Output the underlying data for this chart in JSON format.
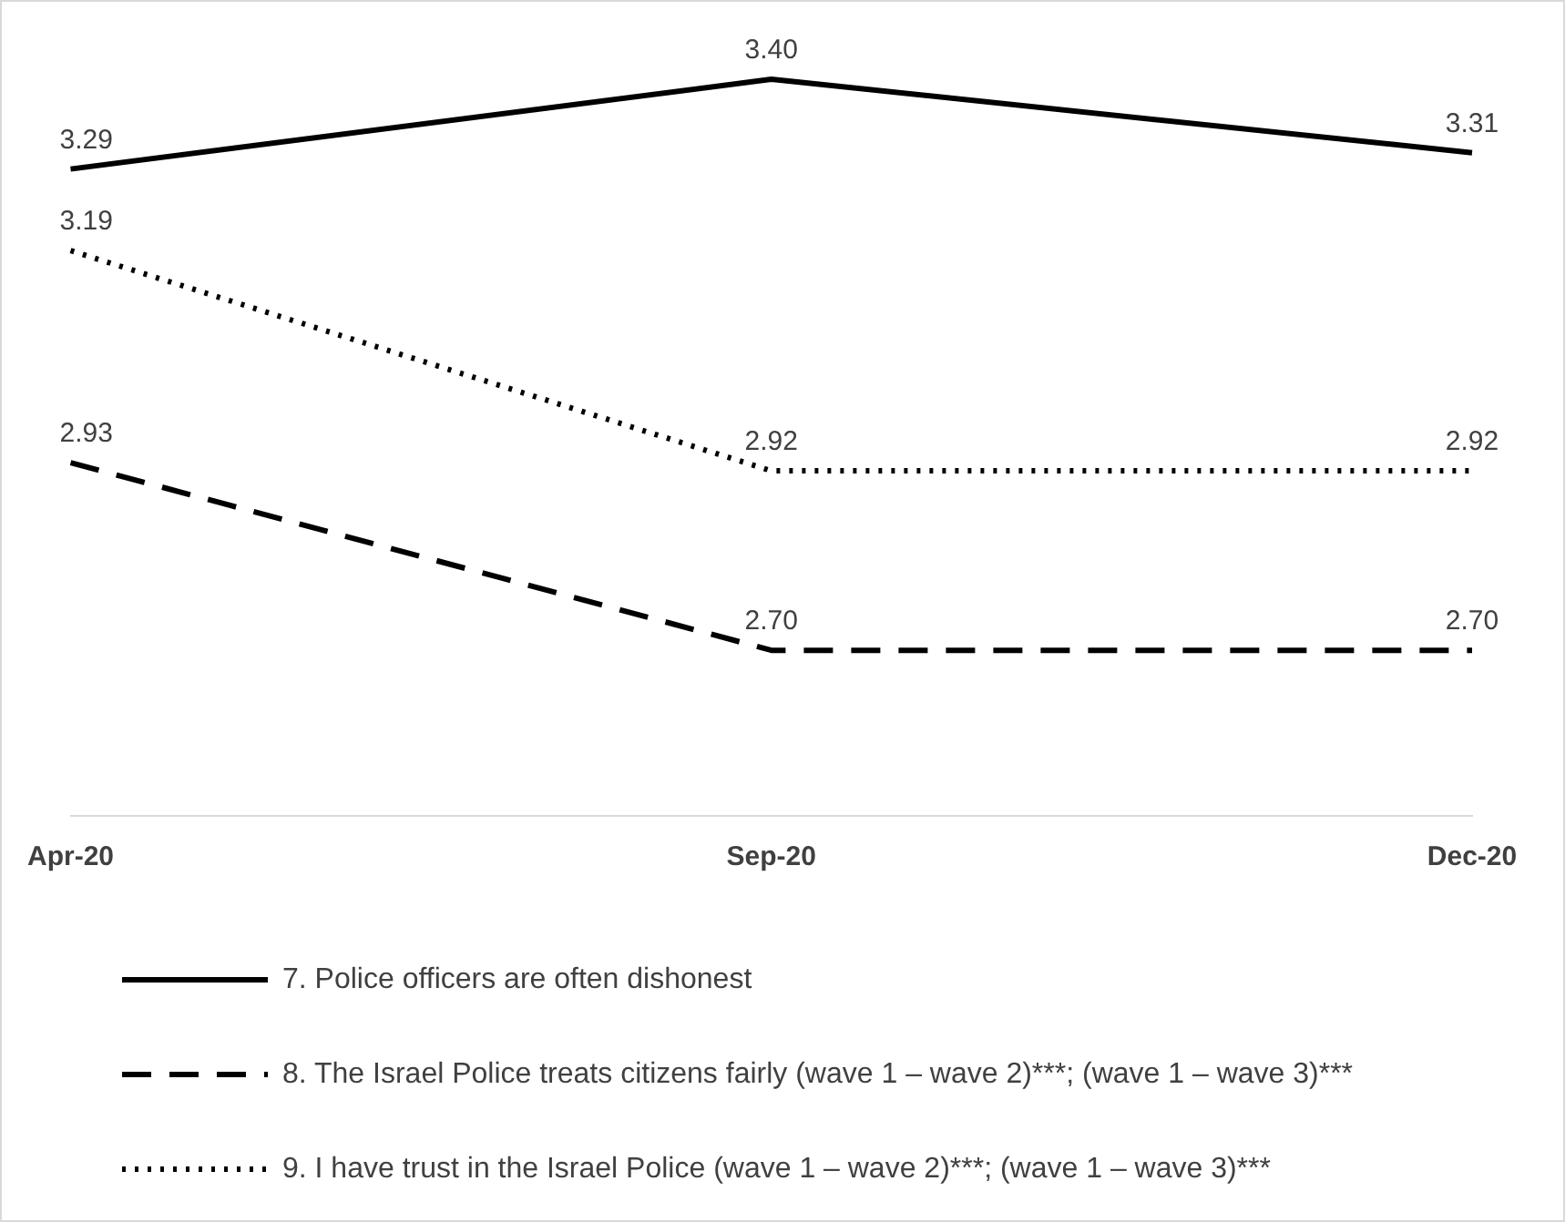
{
  "chart_data": {
    "type": "line",
    "categories": [
      "Apr-20",
      "Sep-20",
      "Dec-20"
    ],
    "series": [
      {
        "name": "7. Police officers are often dishonest",
        "color": "#000000",
        "line_style": "solid",
        "values": [
          3.29,
          3.4,
          3.31
        ],
        "value_labels": [
          "3.29",
          "3.40",
          "3.31"
        ]
      },
      {
        "name": "8. The Israel Police treats citizens fairly (wave 1 – wave 2)***; (wave 1 – wave 3)***",
        "color": "#000000",
        "line_style": "dashed",
        "values": [
          2.93,
          2.7,
          2.7
        ],
        "value_labels": [
          "2.93",
          "2.70",
          "2.70"
        ]
      },
      {
        "name": "9. I have trust in the Israel Police (wave 1 – wave 2)***; (wave 1 – wave 3)***",
        "color": "#000000",
        "line_style": "dotted",
        "values": [
          3.19,
          2.92,
          2.92
        ],
        "value_labels": [
          "3.19",
          "2.92",
          "2.92"
        ]
      }
    ],
    "tick_labels": "x",
    "grid": false,
    "legend": "bottom",
    "marker": "none"
  }
}
